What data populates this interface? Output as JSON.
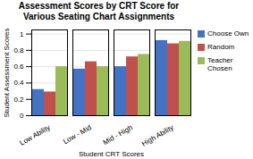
{
  "chart_data": {
    "type": "bar",
    "title": "Assessment Scores by CRT Score for\nVarious Seating Chart Assignments",
    "xlabel": "Student CRT Scores",
    "ylabel": "Student Assessment Scores",
    "categories": [
      "Low Ability",
      "Low - Mid",
      "Mid - High",
      "High Ability"
    ],
    "series": [
      {
        "name": "Choose Own",
        "color": "#4472C4",
        "values": [
          0.32,
          0.57,
          0.6,
          0.92
        ]
      },
      {
        "name": "Random",
        "color": "#C0504D",
        "values": [
          0.29,
          0.66,
          0.72,
          0.88
        ]
      },
      {
        "name": "Teacher Chosen",
        "color": "#9BBB59",
        "values": [
          0.6,
          0.6,
          0.75,
          0.91
        ]
      }
    ],
    "ylim": [
      0,
      1.05
    ],
    "yticks": [
      0,
      0.2,
      0.4,
      0.6,
      0.8,
      1
    ],
    "grid": true,
    "legend": "right"
  }
}
